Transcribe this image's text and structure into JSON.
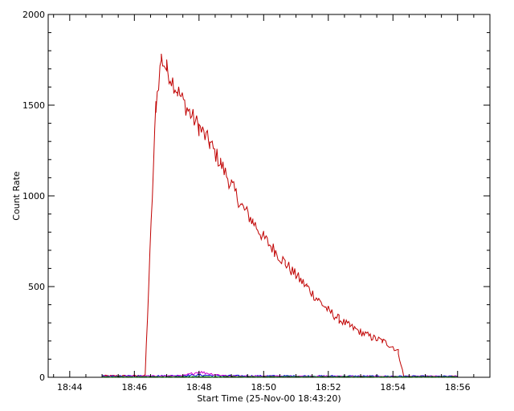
{
  "chart_data": {
    "type": "line",
    "xlabel": "Start Time (25-Nov-00 18:43:20)",
    "ylabel": "Count Rate",
    "x_unit": "minutes",
    "xlim": [
      "18:43:20",
      "18:57:00"
    ],
    "ylim": [
      0,
      2000
    ],
    "x_ticks": [
      "18:44",
      "18:46",
      "18:48",
      "18:50",
      "18:52",
      "18:54",
      "18:56"
    ],
    "y_ticks": [
      0,
      500,
      1000,
      1500,
      2000
    ],
    "grid": false,
    "legend": "none",
    "series": [
      {
        "color": "#c00000",
        "points": [
          [
            "18:45:00",
            8
          ],
          [
            "18:46:10",
            8
          ],
          [
            "18:46:20",
            10
          ],
          [
            "18:46:40",
            1500
          ],
          [
            "18:46:50",
            1760
          ],
          [
            "18:47:00",
            1700
          ],
          [
            "18:47:20",
            1580
          ],
          [
            "18:47:40",
            1470
          ],
          [
            "18:48:00",
            1380
          ],
          [
            "18:48:20",
            1290
          ],
          [
            "18:48:40",
            1180
          ],
          [
            "18:49:00",
            1060
          ],
          [
            "18:49:20",
            940
          ],
          [
            "18:49:40",
            860
          ],
          [
            "18:50:00",
            770
          ],
          [
            "18:50:20",
            700
          ],
          [
            "18:50:40",
            630
          ],
          [
            "18:51:00",
            560
          ],
          [
            "18:51:20",
            500
          ],
          [
            "18:51:40",
            430
          ],
          [
            "18:52:00",
            370
          ],
          [
            "18:52:20",
            320
          ],
          [
            "18:52:40",
            280
          ],
          [
            "18:53:00",
            250
          ],
          [
            "18:53:20",
            220
          ],
          [
            "18:53:40",
            200
          ],
          [
            "18:54:00",
            170
          ],
          [
            "18:54:10",
            140
          ],
          [
            "18:54:20",
            5
          ],
          [
            "18:56:00",
            5
          ]
        ]
      },
      {
        "color": "#0000cc",
        "points": [
          [
            "18:45:00",
            6
          ],
          [
            "18:47:00",
            8
          ],
          [
            "18:48:00",
            12
          ],
          [
            "18:49:00",
            8
          ],
          [
            "18:56:00",
            5
          ]
        ]
      },
      {
        "color": "#cc00cc",
        "points": [
          [
            "18:45:00",
            4
          ],
          [
            "18:47:30",
            8
          ],
          [
            "18:48:00",
            30
          ],
          [
            "18:48:30",
            15
          ],
          [
            "18:49:00",
            6
          ],
          [
            "18:56:00",
            3
          ]
        ]
      },
      {
        "color": "#008800",
        "points": [
          [
            "18:45:00",
            2
          ],
          [
            "18:50:00",
            3
          ],
          [
            "18:56:00",
            2
          ]
        ]
      }
    ]
  }
}
